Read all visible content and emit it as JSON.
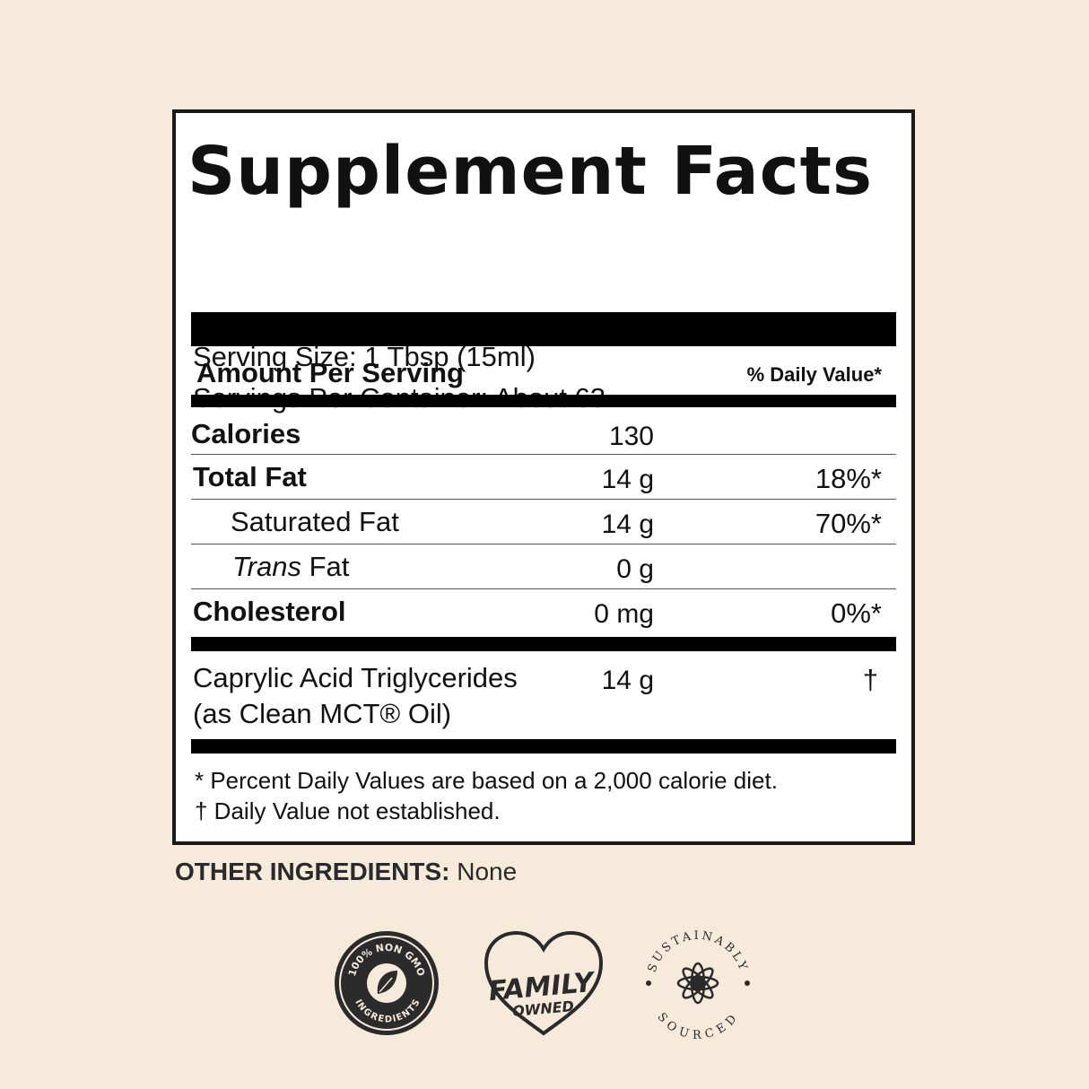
{
  "panel": {
    "title": "Supplement Facts",
    "serving_size": "Serving Size: 1 Tbsp (15ml)",
    "servings_per_container": "Servings Per Container: About 63",
    "amount_per_serving": "Amount Per Serving",
    "daily_value_header": "% Daily Value*",
    "rows": [
      {
        "label": "Calories",
        "amount": "130",
        "dv": ""
      },
      {
        "label": "Total Fat",
        "amount": "14 g",
        "dv": "18%*"
      },
      {
        "label": "Saturated Fat",
        "amount": "14 g",
        "dv": "70%*"
      },
      {
        "label_italic": "Trans",
        "label_rest": " Fat",
        "amount": "0 g",
        "dv": ""
      },
      {
        "label": "Cholesterol",
        "amount": "0 mg",
        "dv": "0%*"
      }
    ],
    "mct": {
      "line1": "Caprylic Acid Triglycerides",
      "line2": "(as Clean MCT® Oil)",
      "amount": "14 g",
      "dv": "†"
    },
    "footnote1": "* Percent Daily Values are based on a 2,000 calorie diet.",
    "footnote2": "† Daily Value not established."
  },
  "other_ingredients": {
    "label": "OTHER INGREDIENTS:",
    "value": " None"
  },
  "badges": {
    "non_gmo_top": "100% NON GMO",
    "non_gmo_bottom": "INGREDIENTS",
    "family_line1": "FAMILY",
    "family_line2": "OWNED",
    "sustain_top": "SUSTAINABLY",
    "sustain_bottom": "SOURCED"
  },
  "colors": {
    "background": "#f6eada",
    "ink": "#1a1a1a"
  }
}
